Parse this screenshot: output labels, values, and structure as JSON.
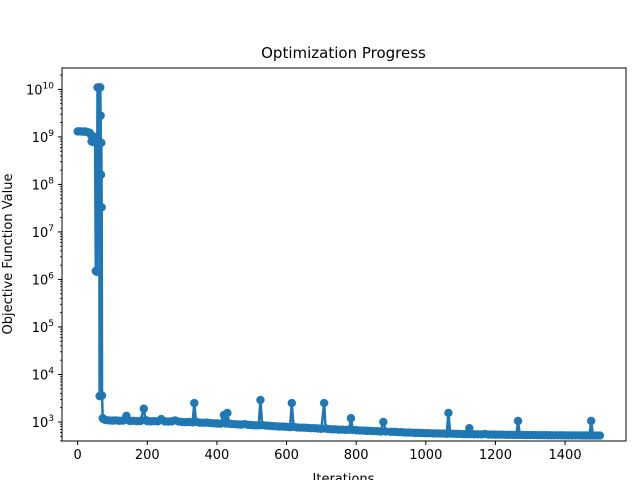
{
  "chart_data": {
    "type": "line",
    "title": "Optimization Progress",
    "xlabel": "Iterations",
    "ylabel": "Objective Function Value",
    "yscale": "log",
    "xlim": [
      -45,
      1575
    ],
    "ylim_log10": [
      2.6,
      10.45
    ],
    "grid": false,
    "series_color": "#1f77b4",
    "x_ticks": [
      {
        "value": 0,
        "label": "0"
      },
      {
        "value": 200,
        "label": "200"
      },
      {
        "value": 400,
        "label": "400"
      },
      {
        "value": 600,
        "label": "600"
      },
      {
        "value": 800,
        "label": "800"
      },
      {
        "value": 1000,
        "label": "1000"
      },
      {
        "value": 1200,
        "label": "1200"
      },
      {
        "value": 1400,
        "label": "1400"
      }
    ],
    "y_ticks": [
      {
        "value": 1000,
        "base": "10",
        "exp": "3"
      },
      {
        "value": 10000,
        "base": "10",
        "exp": "4"
      },
      {
        "value": 100000,
        "base": "10",
        "exp": "5"
      },
      {
        "value": 1000000,
        "base": "10",
        "exp": "6"
      },
      {
        "value": 10000000,
        "base": "10",
        "exp": "7"
      },
      {
        "value": 100000000,
        "base": "10",
        "exp": "8"
      },
      {
        "value": 1000000000,
        "base": "10",
        "exp": "9"
      },
      {
        "value": 10000000000,
        "base": "10",
        "exp": "10"
      }
    ],
    "points": [
      [
        0,
        1300000000
      ],
      [
        5,
        1310000000
      ],
      [
        10,
        1300000000
      ],
      [
        15,
        1290000000
      ],
      [
        20,
        1300000000
      ],
      [
        25,
        1280000000
      ],
      [
        30,
        1250000000
      ],
      [
        35,
        1220000000
      ],
      [
        38,
        1100000000
      ],
      [
        40,
        800000000
      ],
      [
        42,
        1050000000
      ],
      [
        45,
        780000000
      ],
      [
        48,
        950000000
      ],
      [
        50,
        1000000000
      ],
      [
        52,
        1500000
      ],
      [
        55,
        1450000
      ],
      [
        57,
        11000000000
      ],
      [
        59,
        11000000000
      ],
      [
        60,
        750000000
      ],
      [
        62,
        11000000000
      ],
      [
        63,
        3500
      ],
      [
        64,
        11000000000
      ],
      [
        65,
        11000000000
      ],
      [
        66,
        2800000000
      ],
      [
        67,
        160000000
      ],
      [
        68,
        750000000
      ],
      [
        69,
        33000000
      ],
      [
        70,
        3600
      ],
      [
        72,
        1200
      ],
      [
        75,
        1150
      ],
      [
        80,
        1100
      ],
      [
        90,
        1080
      ],
      [
        100,
        1070
      ],
      [
        110,
        1080
      ],
      [
        120,
        1060
      ],
      [
        130,
        1070
      ],
      [
        140,
        1350
      ],
      [
        145,
        1100
      ],
      [
        150,
        1050
      ],
      [
        160,
        1060
      ],
      [
        170,
        1040
      ],
      [
        180,
        1050
      ],
      [
        190,
        1900
      ],
      [
        195,
        1100
      ],
      [
        200,
        1040
      ],
      [
        210,
        1030
      ],
      [
        220,
        1040
      ],
      [
        230,
        1030
      ],
      [
        240,
        1150
      ],
      [
        250,
        1030
      ],
      [
        260,
        1020
      ],
      [
        270,
        1030
      ],
      [
        280,
        1080
      ],
      [
        290,
        1020
      ],
      [
        300,
        1000
      ],
      [
        310,
        990
      ],
      [
        320,
        1000
      ],
      [
        330,
        980
      ],
      [
        335,
        2500
      ],
      [
        340,
        1010
      ],
      [
        350,
        970
      ],
      [
        360,
        960
      ],
      [
        370,
        970
      ],
      [
        380,
        950
      ],
      [
        390,
        940
      ],
      [
        400,
        930
      ],
      [
        410,
        920
      ],
      [
        420,
        1400
      ],
      [
        425,
        930
      ],
      [
        430,
        1550
      ],
      [
        435,
        920
      ],
      [
        440,
        910
      ],
      [
        450,
        900
      ],
      [
        460,
        890
      ],
      [
        470,
        880
      ],
      [
        480,
        900
      ],
      [
        490,
        870
      ],
      [
        500,
        860
      ],
      [
        510,
        850
      ],
      [
        520,
        850
      ],
      [
        525,
        2900
      ],
      [
        530,
        860
      ],
      [
        540,
        840
      ],
      [
        550,
        830
      ],
      [
        560,
        820
      ],
      [
        570,
        810
      ],
      [
        580,
        800
      ],
      [
        590,
        800
      ],
      [
        600,
        790
      ],
      [
        610,
        780
      ],
      [
        615,
        2500
      ],
      [
        620,
        790
      ],
      [
        630,
        770
      ],
      [
        640,
        760
      ],
      [
        650,
        760
      ],
      [
        660,
        750
      ],
      [
        670,
        740
      ],
      [
        680,
        740
      ],
      [
        690,
        730
      ],
      [
        700,
        720
      ],
      [
        708,
        2500
      ],
      [
        712,
        730
      ],
      [
        720,
        710
      ],
      [
        730,
        700
      ],
      [
        740,
        700
      ],
      [
        750,
        690
      ],
      [
        760,
        690
      ],
      [
        770,
        680
      ],
      [
        780,
        690
      ],
      [
        785,
        1200
      ],
      [
        790,
        680
      ],
      [
        800,
        670
      ],
      [
        810,
        660
      ],
      [
        820,
        660
      ],
      [
        830,
        650
      ],
      [
        840,
        650
      ],
      [
        850,
        640
      ],
      [
        860,
        640
      ],
      [
        870,
        630
      ],
      [
        878,
        1000
      ],
      [
        885,
        630
      ],
      [
        900,
        620
      ],
      [
        910,
        620
      ],
      [
        920,
        610
      ],
      [
        930,
        610
      ],
      [
        940,
        600
      ],
      [
        950,
        600
      ],
      [
        960,
        595
      ],
      [
        970,
        590
      ],
      [
        980,
        590
      ],
      [
        990,
        585
      ],
      [
        1000,
        580
      ],
      [
        1010,
        580
      ],
      [
        1020,
        575
      ],
      [
        1030,
        575
      ],
      [
        1040,
        570
      ],
      [
        1050,
        570
      ],
      [
        1060,
        565
      ],
      [
        1065,
        1550
      ],
      [
        1070,
        570
      ],
      [
        1080,
        565
      ],
      [
        1090,
        560
      ],
      [
        1100,
        560
      ],
      [
        1110,
        555
      ],
      [
        1120,
        555
      ],
      [
        1125,
        740
      ],
      [
        1130,
        555
      ],
      [
        1140,
        550
      ],
      [
        1150,
        550
      ],
      [
        1160,
        548
      ],
      [
        1170,
        560
      ],
      [
        1180,
        545
      ],
      [
        1190,
        545
      ],
      [
        1200,
        542
      ],
      [
        1210,
        540
      ],
      [
        1220,
        540
      ],
      [
        1230,
        538
      ],
      [
        1240,
        536
      ],
      [
        1250,
        535
      ],
      [
        1260,
        535
      ],
      [
        1265,
        1050
      ],
      [
        1270,
        535
      ],
      [
        1280,
        533
      ],
      [
        1290,
        532
      ],
      [
        1300,
        530
      ],
      [
        1310,
        530
      ],
      [
        1320,
        528
      ],
      [
        1330,
        528
      ],
      [
        1340,
        527
      ],
      [
        1350,
        526
      ],
      [
        1360,
        525
      ],
      [
        1370,
        525
      ],
      [
        1380,
        524
      ],
      [
        1390,
        524
      ],
      [
        1400,
        523
      ],
      [
        1410,
        522
      ],
      [
        1420,
        522
      ],
      [
        1430,
        521
      ],
      [
        1440,
        521
      ],
      [
        1450,
        520
      ],
      [
        1460,
        520
      ],
      [
        1470,
        520
      ],
      [
        1475,
        1050
      ],
      [
        1480,
        519
      ],
      [
        1490,
        518
      ],
      [
        1500,
        518
      ]
    ]
  }
}
